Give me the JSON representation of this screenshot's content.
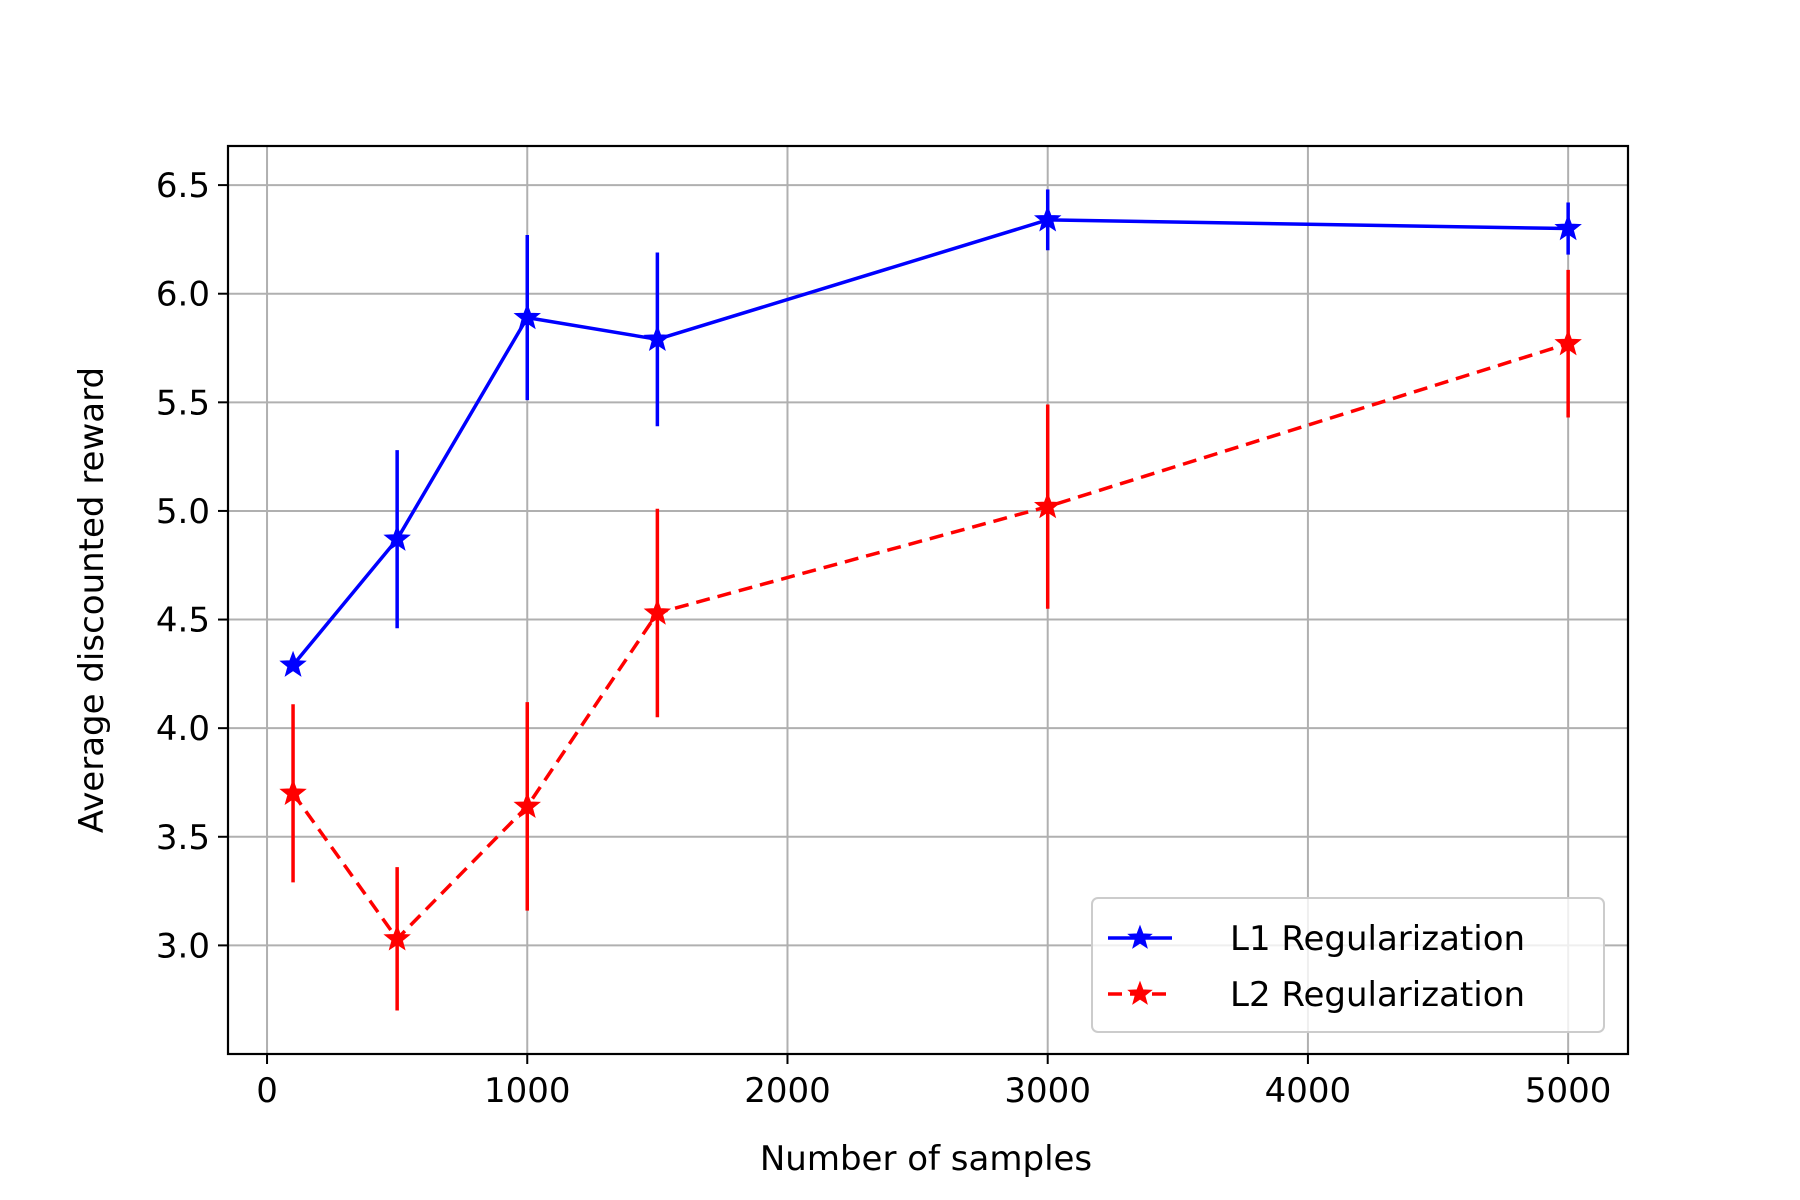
{
  "chart_data": {
    "type": "line",
    "title": "",
    "xlabel": "Number of samples",
    "ylabel": "Average discounted reward",
    "xlim": [
      -150,
      5230
    ],
    "ylim": [
      2.5,
      6.68
    ],
    "grid": true,
    "legend_position": "lower-right",
    "x_ticks": [
      0,
      1000,
      2000,
      3000,
      4000,
      5000
    ],
    "x_tick_labels": [
      "0",
      "1000",
      "2000",
      "3000",
      "4000",
      "5000"
    ],
    "y_ticks": [
      3.0,
      3.5,
      4.0,
      4.5,
      5.0,
      5.5,
      6.0,
      6.5
    ],
    "y_tick_labels": [
      "3.0",
      "3.5",
      "4.0",
      "4.5",
      "5.0",
      "5.5",
      "6.0",
      "6.5"
    ],
    "x": [
      100,
      500,
      1000,
      1500,
      3000,
      5000
    ],
    "series": [
      {
        "name": "L1 Regularization",
        "color": "#0000ff",
        "line_style": "solid",
        "marker": "star",
        "values": [
          4.29,
          4.87,
          5.89,
          5.79,
          6.34,
          6.3
        ],
        "errors": [
          0.0,
          0.41,
          0.38,
          0.4,
          0.14,
          0.12
        ]
      },
      {
        "name": "L2 Regularization",
        "color": "#ff0000",
        "line_style": "dashed",
        "marker": "star",
        "values": [
          3.7,
          3.03,
          3.64,
          4.53,
          5.02,
          5.77
        ],
        "errors": [
          0.41,
          0.33,
          0.48,
          0.48,
          0.47,
          0.34
        ]
      }
    ]
  }
}
